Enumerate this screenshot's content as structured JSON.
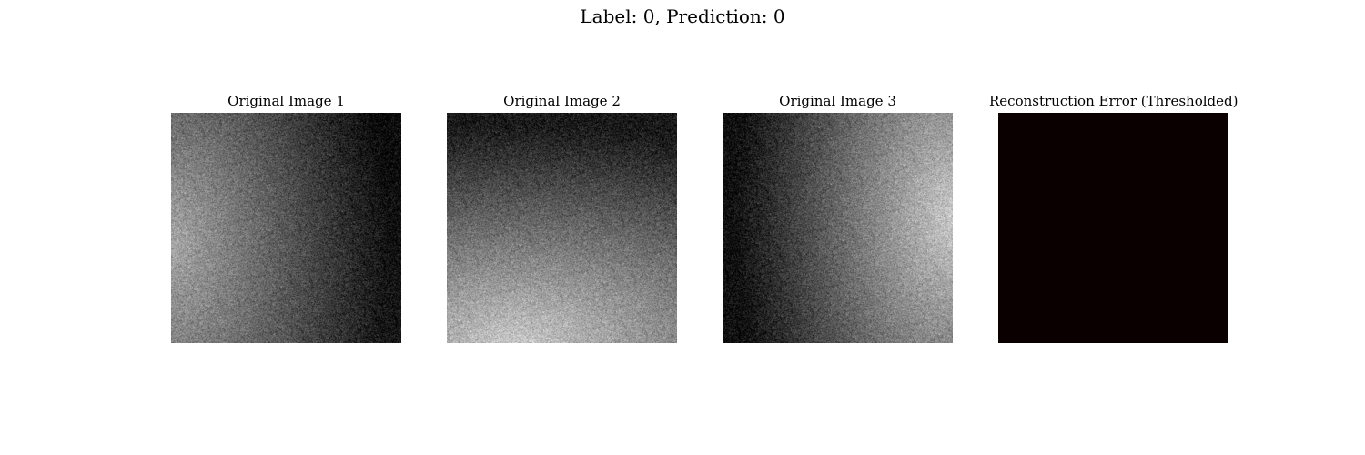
{
  "figure": {
    "suptitle": "Label: 0, Prediction: 0"
  },
  "panels": [
    {
      "title": "Original Image 1",
      "gradient": "bright-left"
    },
    {
      "title": "Original Image 2",
      "gradient": "bright-bottom"
    },
    {
      "title": "Original Image 3",
      "gradient": "bright-right"
    },
    {
      "title": "Reconstruction Error (Thresholded)",
      "fill_color": "#0b0000"
    }
  ]
}
